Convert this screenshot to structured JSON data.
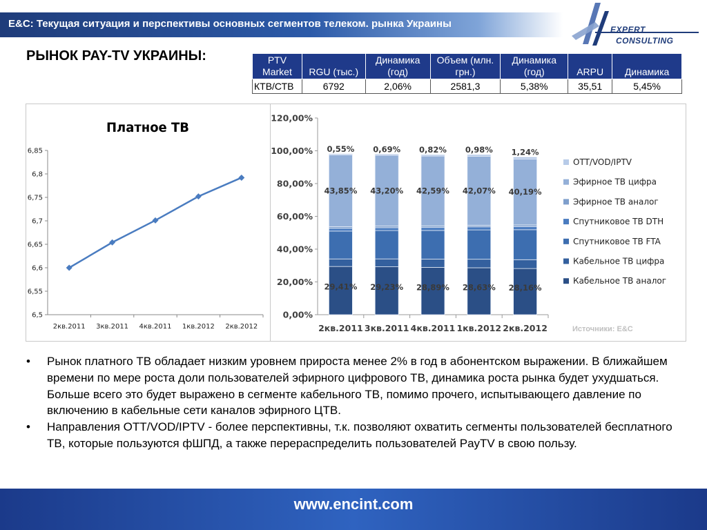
{
  "header": {
    "title": "E&C: Текущая ситуация и перспективы основных сегментов телеком.  рынка Украины"
  },
  "logo": {
    "line1": "EXPERT",
    "line2": "CONSULTING"
  },
  "section_title": "РЫНОК PAY-TV УКРАИНЫ:",
  "table": {
    "headers": [
      "PTV Market",
      "RGU (тыс.)",
      "Динамика (год)",
      "Объем (млн. грн.)",
      "Динамика (год)",
      "ARPU",
      "Динамика"
    ],
    "rows": [
      [
        "КТВ/СТВ",
        "6792",
        "2,06%",
        "2581,3",
        "5,38%",
        "35,51",
        "5,45%"
      ]
    ]
  },
  "source_note": "Источники: E&C",
  "bullets": [
    "Рынок  платного ТВ  обладает низким уровнем прироста менее 2% в год в абонентском выражении. В ближайшем времени по мере роста доли пользователей эфирного цифрового ТВ, динамика роста рынка будет ухудшаться. Больше всего это будет выражено в сегменте кабельного ТВ, помимо прочего, испытывающего давление по включению в кабельные сети каналов эфирного ЦТВ.",
    "Направления OTT/VOD/IPTV - более перспективны, т.к. позволяют охватить сегменты пользователей бесплатного ТВ, которые пользуются фШПД, а также перераспределить пользователей PayTV в свою пользу."
  ],
  "bullet_mark": "•",
  "footer": {
    "url": "www.encint.com"
  },
  "colors": {
    "header_dark": "#1f3c7a",
    "table_header": "#1f3a8a",
    "line_series": "#4a7cc0",
    "footer": "#2f63c0"
  },
  "chart_data": [
    {
      "type": "line",
      "title": "Платное ТВ",
      "categories": [
        "2кв.2011",
        "3кв.2011",
        "4кв.2011",
        "1кв.2012",
        "2кв.2012"
      ],
      "series": [
        {
          "values": [
            6.6,
            6.654,
            6.701,
            6.752,
            6.792
          ]
        }
      ],
      "ylim": [
        6.5,
        6.85
      ],
      "yticks": [
        "6,5",
        "6,55",
        "6,6",
        "6,65",
        "6,7",
        "6,75",
        "6,8",
        "6,85"
      ],
      "grid": false,
      "color": "#4a7cc0"
    },
    {
      "type": "bar",
      "stacked": true,
      "categories": [
        "2кв.2011",
        "3кв.2011",
        "4кв.2011",
        "1кв.2012",
        "2кв.2012"
      ],
      "ylim": [
        0,
        120
      ],
      "yticks": [
        "0,00%",
        "20,00%",
        "40,00%",
        "60,00%",
        "80,00%",
        "100,00%",
        "120,00%"
      ],
      "legend_position": "right",
      "series": [
        {
          "name": "Кабельное ТВ аналог",
          "color": "#2b4f86",
          "values": [
            29.41,
            29.23,
            28.89,
            28.63,
            28.16
          ],
          "labels": [
            "29,41%",
            "29,23%",
            "28,89%",
            "28,63%",
            "28,16%"
          ]
        },
        {
          "name": "Кабельное ТВ цифра",
          "color": "#34609e",
          "values": [
            4.6,
            4.8,
            5.0,
            5.2,
            5.4
          ],
          "labels": []
        },
        {
          "name": "Спутниковое ТВ FTA",
          "color": "#3d6eb0",
          "values": [
            17.0,
            17.3,
            17.5,
            17.9,
            18.3
          ],
          "labels": []
        },
        {
          "name": "Спутниковое ТВ DTH",
          "color": "#4a7cc0",
          "values": [
            1.7,
            1.75,
            1.8,
            1.85,
            1.9
          ],
          "labels": []
        },
        {
          "name": "Эфирное ТВ аналог",
          "color": "#7f9fcc",
          "values": [
            1.0,
            1.0,
            1.0,
            1.0,
            1.0
          ],
          "labels": []
        },
        {
          "name": "Эфирное ТВ цифра",
          "color": "#94b0d8",
          "values": [
            43.85,
            43.2,
            42.59,
            42.07,
            40.19
          ],
          "labels": [
            "43,85%",
            "43,20%",
            "42,59%",
            "42,07%",
            "40,19%"
          ]
        },
        {
          "name": "OTT/VOD/IPTV",
          "color": "#b7cbe8",
          "values": [
            0.55,
            0.69,
            0.82,
            0.98,
            1.24
          ],
          "labels": [
            "0,55%",
            "0,69%",
            "0,82%",
            "0,98%",
            "1,24%"
          ]
        }
      ]
    }
  ]
}
